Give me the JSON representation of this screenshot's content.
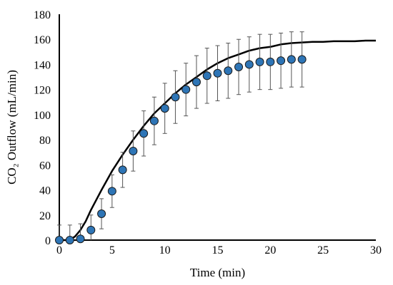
{
  "chart_data": {
    "type": "scatter",
    "xlabel": "Time (min)",
    "ylabel": "CO₂ Outflow (mL/min)",
    "xlim": [
      0,
      30
    ],
    "ylim": [
      0,
      180
    ],
    "xticks": [
      0,
      5,
      10,
      15,
      20,
      25,
      30
    ],
    "yticks": [
      0,
      20,
      40,
      60,
      80,
      100,
      120,
      140,
      160,
      180
    ],
    "grid": false,
    "legend": "none",
    "series": [
      {
        "kind": "points_with_error_bars",
        "color": "#2e75b6",
        "x": [
          0,
          1,
          2,
          3,
          4,
          5,
          6,
          7,
          8,
          9,
          10,
          11,
          12,
          13,
          14,
          15,
          16,
          17,
          18,
          19,
          20,
          21,
          22,
          23
        ],
        "y": [
          0,
          0,
          1,
          8,
          21,
          39,
          56,
          71,
          85,
          95,
          105,
          114,
          120,
          126,
          131,
          133,
          135,
          138,
          140,
          142,
          142,
          143,
          144,
          144
        ],
        "error": [
          12,
          12,
          12,
          12,
          12,
          13,
          14,
          16,
          18,
          19,
          20,
          21,
          21,
          21,
          22,
          22,
          22,
          22,
          22,
          22,
          22,
          22,
          22,
          22
        ]
      },
      {
        "kind": "model_line",
        "color": "#000000",
        "x": [
          0,
          1,
          1.5,
          2,
          2.5,
          3,
          4,
          5,
          6,
          7,
          8,
          9,
          10,
          11,
          12,
          13,
          14,
          15,
          16,
          17,
          18,
          19,
          20,
          21,
          22,
          23,
          24,
          25,
          26,
          27,
          28,
          29,
          30
        ],
        "y": [
          0,
          0,
          3,
          8,
          15,
          24,
          40,
          55,
          68,
          80,
          91,
          101,
          109,
          117,
          124,
          130,
          136,
          141,
          145,
          148,
          151,
          153,
          154,
          156,
          157,
          157.5,
          158,
          158,
          158.5,
          158.5,
          158.5,
          159,
          159
        ]
      }
    ]
  }
}
